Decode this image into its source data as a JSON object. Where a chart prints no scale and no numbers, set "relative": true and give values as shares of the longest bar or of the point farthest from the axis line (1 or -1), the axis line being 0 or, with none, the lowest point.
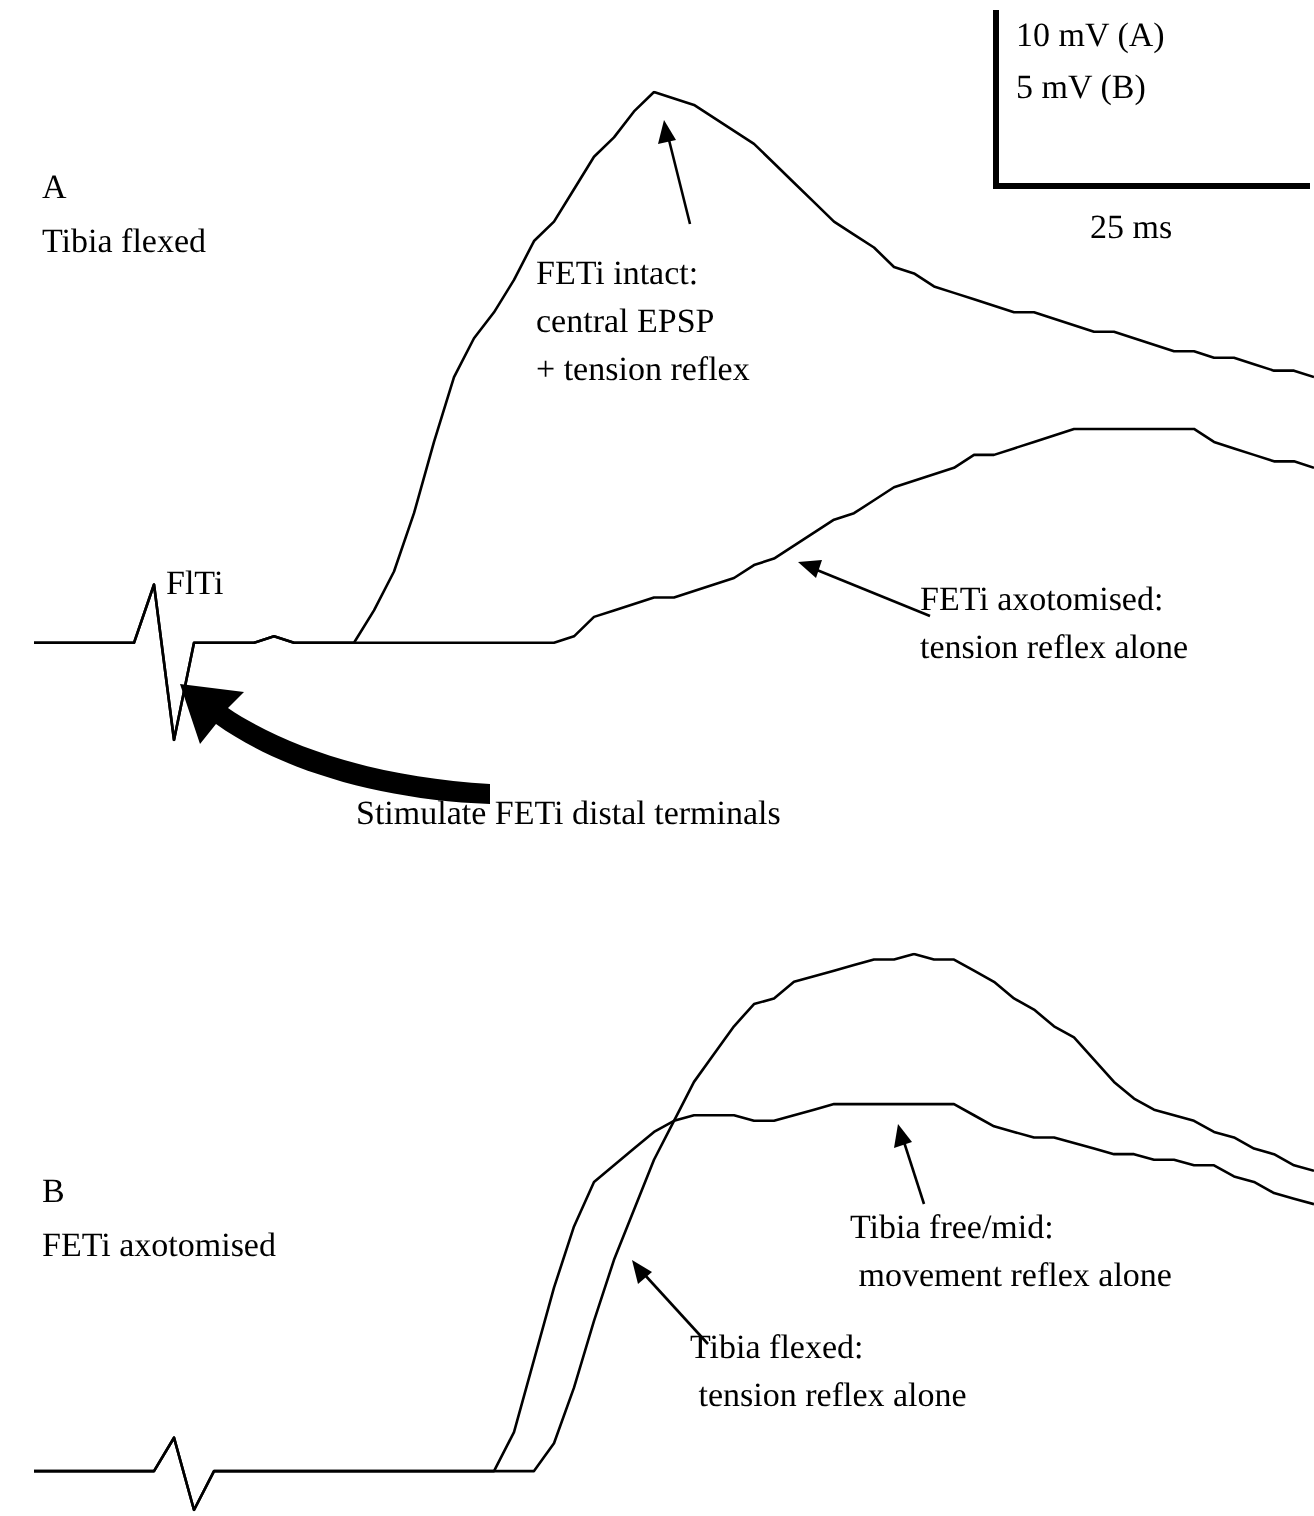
{
  "chart_data": [
    {
      "type": "line",
      "title": "A",
      "subtitle": "Tibia flexed",
      "relative": true,
      "marker": "none",
      "categories": [
        null,
        null,
        null,
        null,
        null,
        null,
        null,
        null,
        null,
        null,
        null,
        null,
        null,
        null,
        null,
        null,
        null,
        null,
        null,
        null,
        null,
        null,
        null,
        null,
        null,
        null,
        null,
        null,
        null,
        null,
        null,
        null,
        null,
        null,
        null,
        null,
        null,
        null,
        null,
        null,
        null,
        null,
        null,
        null,
        null,
        null,
        null,
        null,
        null,
        null,
        null,
        null,
        null,
        null,
        null,
        null,
        null,
        null,
        null,
        null,
        null,
        null,
        null,
        null,
        null
      ],
      "series": [
        {
          "color": "#000000",
          "values": [
            0.15,
            0.15,
            0.15,
            0.15,
            0.15,
            0.15,
            0.24,
            0,
            0.15,
            0.15,
            0.15,
            0.15,
            0.16,
            0.15,
            0.15,
            0.15,
            0.15,
            0.2,
            0.26,
            0.35,
            0.46,
            0.56,
            0.62,
            0.66,
            0.71,
            0.77,
            0.8,
            0.85,
            0.9,
            0.93,
            0.97,
            1,
            0.99,
            0.98,
            0.96,
            0.94,
            0.92,
            0.89,
            0.86,
            0.83,
            0.8,
            0.78,
            0.76,
            0.73,
            0.72,
            0.7,
            0.69,
            0.68,
            0.67,
            0.66,
            0.66,
            0.65,
            0.64,
            0.63,
            0.63,
            0.62,
            0.61,
            0.6,
            0.6,
            0.59,
            0.59,
            0.58,
            0.57,
            0.57,
            0.56
          ]
        },
        {
          "color": "#000000",
          "values": [
            0.15,
            0.15,
            0.15,
            0.15,
            0.15,
            0.15,
            0.24,
            0,
            0.15,
            0.15,
            0.15,
            0.15,
            0.16,
            0.15,
            0.15,
            0.15,
            0.15,
            0.15,
            0.15,
            0.15,
            0.15,
            0.15,
            0.15,
            0.15,
            0.15,
            0.15,
            0.15,
            0.16,
            0.19,
            0.2,
            0.21,
            0.22,
            0.22,
            0.23,
            0.24,
            0.25,
            0.27,
            0.28,
            0.3,
            0.32,
            0.34,
            0.35,
            0.37,
            0.39,
            0.4,
            0.41,
            0.42,
            0.44,
            0.44,
            0.45,
            0.46,
            0.47,
            0.48,
            0.48,
            0.48,
            0.48,
            0.48,
            0.48,
            0.48,
            0.46,
            0.45,
            0.44,
            0.43,
            0.43,
            0.42
          ]
        }
      ],
      "annotations": [
        "FlTi",
        "FETi intact:\ncentral EPSP\n+ tension reflex",
        "FETi axotomised:\ntension reflex alone",
        "Stimulate FETi distal terminals",
        "10 mV (A)",
        "5 mV (B)",
        "25 ms"
      ]
    },
    {
      "type": "line",
      "title": "B",
      "subtitle": "FETi axotomised",
      "relative": true,
      "marker": "none",
      "categories": [
        null,
        null,
        null,
        null,
        null,
        null,
        null,
        null,
        null,
        null,
        null,
        null,
        null,
        null,
        null,
        null,
        null,
        null,
        null,
        null,
        null,
        null,
        null,
        null,
        null,
        null,
        null,
        null,
        null,
        null,
        null,
        null,
        null,
        null,
        null,
        null,
        null,
        null,
        null,
        null,
        null,
        null,
        null,
        null,
        null,
        null,
        null,
        null,
        null,
        null,
        null,
        null,
        null,
        null,
        null,
        null,
        null,
        null,
        null,
        null,
        null,
        null,
        null,
        null,
        null
      ],
      "series": [
        {
          "color": "#000000",
          "values": [
            0.07,
            0.07,
            0.07,
            0.07,
            0.07,
            0.07,
            0.07,
            0.13,
            0,
            0.07,
            0.07,
            0.07,
            0.07,
            0.07,
            0.07,
            0.07,
            0.07,
            0.07,
            0.07,
            0.07,
            0.07,
            0.07,
            0.07,
            0.07,
            0.14,
            0.27,
            0.4,
            0.51,
            0.59,
            0.62,
            0.65,
            0.68,
            0.7,
            0.71,
            0.71,
            0.71,
            0.7,
            0.7,
            0.71,
            0.72,
            0.73,
            0.73,
            0.73,
            0.73,
            0.73,
            0.73,
            0.73,
            0.71,
            0.69,
            0.68,
            0.67,
            0.67,
            0.66,
            0.65,
            0.64,
            0.64,
            0.63,
            0.63,
            0.62,
            0.62,
            0.6,
            0.59,
            0.57,
            0.56,
            0.55
          ]
        },
        {
          "color": "#000000",
          "values": [
            0.07,
            0.07,
            0.07,
            0.07,
            0.07,
            0.07,
            0.07,
            0.13,
            0,
            0.07,
            0.07,
            0.07,
            0.07,
            0.07,
            0.07,
            0.07,
            0.07,
            0.07,
            0.07,
            0.07,
            0.07,
            0.07,
            0.07,
            0.07,
            0.07,
            0.07,
            0.12,
            0.22,
            0.34,
            0.45,
            0.54,
            0.63,
            0.7,
            0.77,
            0.82,
            0.87,
            0.91,
            0.92,
            0.95,
            0.96,
            0.97,
            0.98,
            0.99,
            0.99,
            1,
            0.99,
            0.99,
            0.97,
            0.95,
            0.92,
            0.9,
            0.87,
            0.85,
            0.81,
            0.77,
            0.74,
            0.72,
            0.71,
            0.7,
            0.68,
            0.67,
            0.65,
            0.64,
            0.62,
            0.61
          ]
        }
      ],
      "annotations": [
        "Tibia free/mid:\n movement reflex alone",
        "Tibia flexed:\n tension reflex alone"
      ]
    }
  ]
}
